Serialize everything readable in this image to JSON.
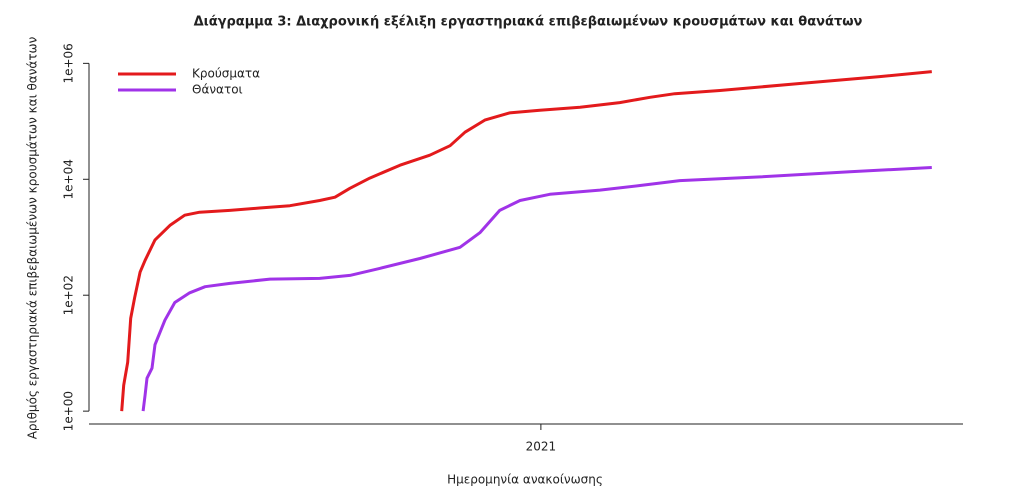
{
  "chart_data": {
    "type": "line",
    "title": "Διάγραμμα 3: Διαχρονική εξέλιξη εργαστηριακά επιβεβαιωμένων κρουσμάτων και θανάτων",
    "x_label": "Ημερομηνία ανακοίνωσης",
    "y_label": "Αριθμός εργαστηριακά επιβεβαιωμένων κρουσμάτων και θανάτων",
    "log_y": true,
    "legend_position": "top-left",
    "xlim": [
      2020.089,
      2021.851
    ],
    "xticks": [
      2021
    ],
    "ylim": [
      0.6,
      1700000
    ],
    "yticks": [
      {
        "value": 1,
        "label": "1e+00"
      },
      {
        "value": 100,
        "label": "1e+02"
      },
      {
        "value": 10000,
        "label": "1e+04"
      },
      {
        "value": 1000000,
        "label": "1e+06"
      }
    ],
    "series": [
      {
        "name": "Κρούσματα",
        "color": "#e31a1c",
        "x": [
          2020.155,
          2020.159,
          2020.167,
          2020.173,
          2020.181,
          2020.192,
          2020.202,
          2020.222,
          2020.252,
          2020.282,
          2020.312,
          2020.373,
          2020.433,
          2020.494,
          2020.554,
          2020.585,
          2020.615,
          2020.655,
          2020.716,
          2020.776,
          2020.817,
          2020.847,
          2020.887,
          2020.937,
          2020.998,
          2021.079,
          2021.159,
          2021.22,
          2021.27,
          2021.361,
          2021.522,
          2021.683,
          2021.788
        ],
        "values": [
          1,
          2.8,
          7,
          40,
          90,
          250,
          400,
          900,
          1600,
          2400,
          2700,
          2900,
          3200,
          3500,
          4300,
          4900,
          7000,
          10500,
          17500,
          26000,
          38000,
          65000,
          105000,
          140000,
          155000,
          175000,
          210000,
          260000,
          300000,
          340000,
          450000,
          590000,
          720000
        ]
      },
      {
        "name": "Θάνατοι",
        "color": "#a033e8",
        "x": [
          2020.198,
          2020.202,
          2020.206,
          2020.216,
          2020.222,
          2020.242,
          2020.262,
          2020.292,
          2020.323,
          2020.373,
          2020.454,
          2020.554,
          2020.615,
          2020.675,
          2020.756,
          2020.837,
          2020.877,
          2020.917,
          2020.958,
          2021.018,
          2021.119,
          2021.2,
          2021.28,
          2021.442,
          2021.623,
          2021.788
        ],
        "values": [
          1,
          1.9,
          3.7,
          5.5,
          14,
          37,
          75,
          110,
          140,
          160,
          190,
          195,
          220,
          290,
          430,
          670,
          1200,
          2900,
          4300,
          5500,
          6500,
          7800,
          9500,
          11000,
          13500,
          16000
        ]
      }
    ]
  }
}
